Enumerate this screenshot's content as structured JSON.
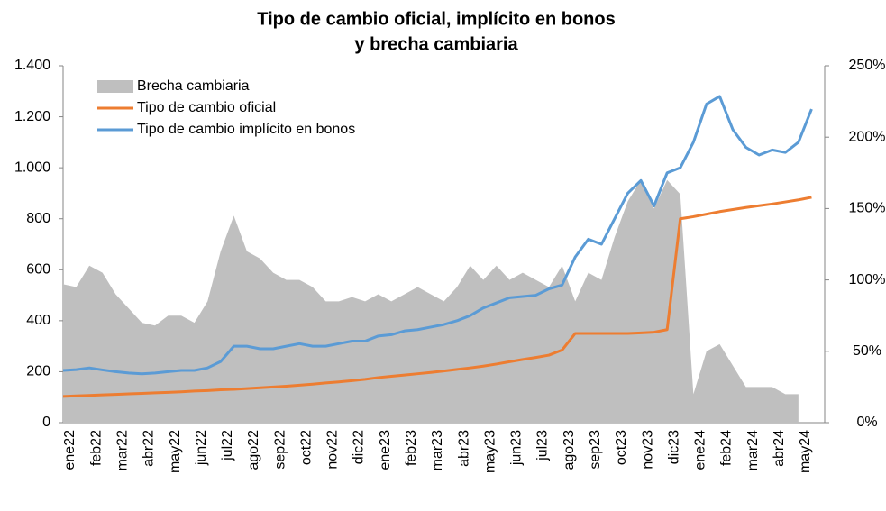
{
  "chart_data": {
    "type": "combo",
    "title": [
      "Tipo de cambio oficial, implícito en bonos",
      "y brecha cambiaria"
    ],
    "categories": [
      "ene22",
      null,
      "feb22",
      null,
      "mar22",
      null,
      "abr22",
      null,
      "may22",
      null,
      "jun22",
      null,
      "jul22",
      null,
      "ago22",
      null,
      "sep22",
      null,
      "oct22",
      null,
      "nov22",
      null,
      "dic22",
      null,
      "ene23",
      null,
      "feb23",
      null,
      "mar23",
      null,
      "abr23",
      null,
      "may23",
      null,
      "jun23",
      null,
      "jul23",
      null,
      "ago23",
      null,
      "sep23",
      null,
      "oct23",
      null,
      "nov23",
      null,
      "dic23",
      null,
      "ene24",
      null,
      "feb24",
      null,
      "mar24",
      null,
      "abr24",
      null,
      "may24",
      null
    ],
    "series": [
      {
        "name": "Brecha cambiaria",
        "type": "area",
        "axis": "y2",
        "color": "#bfbfbf",
        "values": [
          97,
          95,
          110,
          105,
          90,
          80,
          70,
          68,
          75,
          75,
          70,
          85,
          120,
          145,
          120,
          115,
          105,
          100,
          100,
          95,
          85,
          85,
          88,
          85,
          90,
          85,
          90,
          95,
          90,
          85,
          95,
          110,
          100,
          110,
          100,
          105,
          100,
          95,
          110,
          85,
          105,
          100,
          130,
          155,
          170,
          150,
          170,
          160,
          20,
          50,
          55,
          40,
          25,
          25,
          25,
          20,
          20,
          null
        ]
      },
      {
        "name": "Tipo de cambio oficial",
        "type": "line",
        "color": "#ed7d31",
        "values": [
          103,
          105,
          107,
          109,
          111,
          113,
          115,
          117,
          119,
          121,
          124,
          126,
          129,
          131,
          134,
          137,
          140,
          143,
          147,
          151,
          156,
          160,
          165,
          170,
          177,
          182,
          187,
          192,
          197,
          203,
          209,
          215,
          222,
          230,
          239,
          248,
          256,
          265,
          285,
          350,
          350,
          350,
          350,
          350,
          352,
          355,
          365,
          800,
          808,
          818,
          828,
          836,
          844,
          851,
          858,
          866,
          874,
          884
        ]
      },
      {
        "name": "Tipo de cambio implícito en bonos",
        "type": "line",
        "color": "#5b9bd5",
        "values": [
          205,
          208,
          215,
          207,
          200,
          195,
          192,
          195,
          200,
          205,
          205,
          215,
          240,
          300,
          300,
          290,
          290,
          300,
          310,
          300,
          300,
          310,
          320,
          320,
          340,
          345,
          360,
          365,
          375,
          385,
          400,
          420,
          450,
          470,
          490,
          495,
          500,
          525,
          540,
          650,
          720,
          700,
          800,
          900,
          950,
          850,
          980,
          1000,
          1100,
          1250,
          1280,
          1150,
          1080,
          1050,
          1070,
          1060,
          1100,
          1230
        ]
      }
    ],
    "ylim": [
      0,
      1400
    ],
    "yticks": [
      0,
      200,
      400,
      600,
      800,
      {
        "value": 1000,
        "label": "1.000"
      },
      {
        "value": 1200,
        "label": "1.200"
      },
      {
        "value": 1400,
        "label": "1.400"
      }
    ],
    "y2lim": [
      0,
      250
    ],
    "y2ticks": [
      {
        "value": 0,
        "label": "0%"
      },
      {
        "value": 50,
        "label": "50%"
      },
      {
        "value": 100,
        "label": "100%"
      },
      {
        "value": 150,
        "label": "150%"
      },
      {
        "value": 200,
        "label": "200%"
      },
      {
        "value": 250,
        "label": "250%"
      }
    ],
    "legend": "top-left"
  }
}
